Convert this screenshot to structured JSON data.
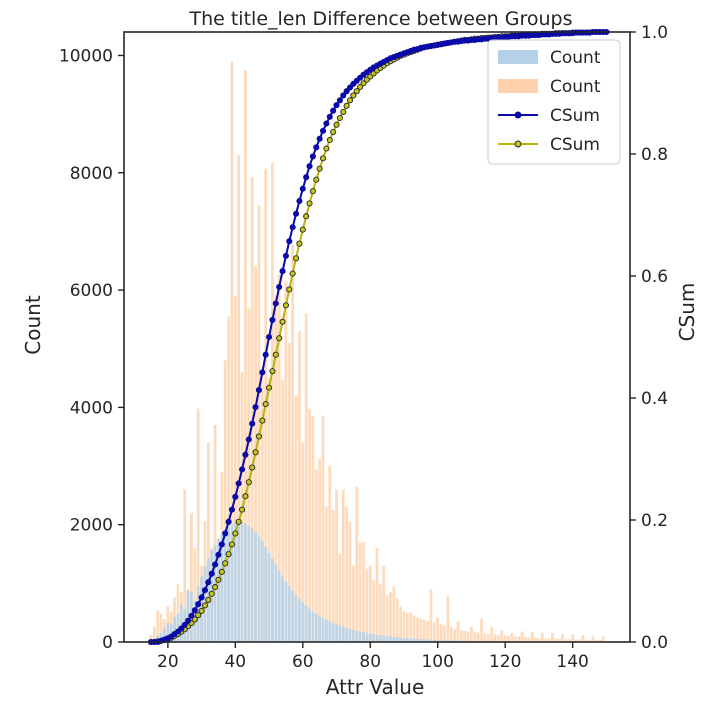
{
  "chart_data": {
    "type": "bar",
    "title": "The title_len Difference between Groups",
    "xlabel": "Attr Value",
    "ylabel": "Count",
    "y2label": "CSum",
    "xlim": [
      7,
      157
    ],
    "ylim": [
      0,
      10400
    ],
    "y2lim": [
      0,
      1.0
    ],
    "xticks": [
      20,
      40,
      60,
      80,
      100,
      120,
      140
    ],
    "yticks": [
      0,
      2000,
      4000,
      6000,
      8000,
      10000
    ],
    "y2ticks": [
      0.0,
      0.2,
      0.4,
      0.6,
      0.8,
      1.0
    ],
    "y2tick_labels": [
      "0.0",
      "0.2",
      "0.4",
      "0.6",
      "0.8",
      "1.0"
    ],
    "grid": false,
    "legend_position": "top-right",
    "legend": [
      {
        "label": "Count",
        "kind": "patch",
        "color": "#b7d1e8"
      },
      {
        "label": "Count",
        "kind": "patch",
        "color": "#ffd2ad"
      },
      {
        "label": "CSum",
        "kind": "line",
        "color": "#0a0aa8",
        "marker_fill": "#0a0aa8"
      },
      {
        "label": "CSum",
        "kind": "line",
        "color": "#b5b50c",
        "marker_fill": "#c5c51a"
      }
    ],
    "colors": {
      "series1_bar": "#b7d1e8",
      "series2_bar": "#ffd2ad",
      "series1_line": "#0a0aa8",
      "series2_line": "#b5b50c",
      "series2_marker_fill": "#c5c51a"
    },
    "x_start": 15,
    "x_step": 1,
    "series": [
      {
        "name": "Count",
        "values": [
          20,
          60,
          110,
          160,
          230,
          330,
          300,
          420,
          480,
          650,
          560,
          870,
          860,
          700,
          950,
          1120,
          1300,
          1420,
          1570,
          1650,
          1760,
          1830,
          1920,
          1960,
          2000,
          2050,
          2080,
          2050,
          2020,
          1980,
          1940,
          1880,
          1800,
          1720,
          1620,
          1520,
          1420,
          1320,
          1210,
          1120,
          1030,
          950,
          870,
          800,
          740,
          680,
          620,
          570,
          520,
          480,
          440,
          410,
          380,
          350,
          320,
          300,
          280,
          260,
          240,
          225,
          210,
          195,
          180,
          168,
          156,
          145,
          135,
          126,
          117,
          109,
          101,
          94,
          88,
          82,
          76,
          71,
          66,
          61,
          57,
          53,
          49,
          46,
          43,
          40,
          37,
          34,
          32,
          30,
          28,
          26,
          24,
          22,
          21,
          20,
          19,
          18,
          17,
          16,
          15,
          14,
          13,
          12,
          11,
          10,
          10,
          9,
          9,
          8,
          8,
          7,
          7,
          6,
          6,
          6,
          5,
          5,
          5,
          4,
          4,
          4,
          3,
          3,
          3,
          3,
          2,
          2,
          2,
          2,
          2,
          2,
          2,
          1,
          1,
          1,
          1,
          1
        ]
      },
      {
        "name": "Count",
        "values": [
          120,
          260,
          540,
          480,
          390,
          620,
          520,
          760,
          980,
          850,
          2600,
          900,
          2200,
          1600,
          3980,
          1300,
          2060,
          3400,
          1600,
          3700,
          1500,
          2900,
          4800,
          5550,
          9900,
          5900,
          8300,
          4600,
          9750,
          5700,
          7930,
          6400,
          7450,
          4600,
          8070,
          4500,
          8170,
          5900,
          6270,
          4460,
          6150,
          5100,
          6780,
          4200,
          5300,
          3400,
          5600,
          3970,
          3850,
          2950,
          3120,
          3850,
          2300,
          3000,
          2250,
          2600,
          1500,
          2600,
          2300,
          2050,
          1300,
          2650,
          1700,
          1700,
          1250,
          1300,
          1050,
          1600,
          980,
          1300,
          800,
          850,
          950,
          740,
          600,
          520,
          500,
          500,
          450,
          420,
          400,
          380,
          360,
          900,
          330,
          420,
          300,
          280,
          780,
          260,
          220,
          360,
          200,
          190,
          180,
          260,
          170,
          160,
          400,
          150,
          140,
          250,
          130,
          120,
          200,
          110,
          100,
          150,
          95,
          90,
          180,
          85,
          80,
          170,
          75,
          70,
          160,
          65,
          60,
          150,
          55,
          52,
          140,
          50,
          48,
          130,
          45,
          43,
          120,
          40,
          38,
          110,
          35,
          33,
          100
        ]
      }
    ],
    "cumsum_series": [
      {
        "name": "CSum",
        "x": [
          15,
          16,
          17,
          18,
          19,
          20,
          21,
          22,
          23,
          24,
          25,
          26,
          27,
          28,
          29,
          30,
          31,
          32,
          33,
          34,
          35,
          36,
          37,
          38,
          39,
          40,
          41,
          42,
          43,
          44,
          45,
          46,
          47,
          48,
          49,
          50,
          51,
          52,
          53,
          54,
          55,
          56,
          57,
          58,
          59,
          60,
          61,
          62,
          63,
          64,
          65,
          66,
          67,
          68,
          69,
          70,
          71,
          72,
          73,
          74,
          75,
          76,
          77,
          78,
          79,
          80,
          81,
          82,
          83,
          84,
          85,
          86,
          87,
          88,
          89,
          90,
          91,
          92,
          93,
          94,
          95,
          96,
          97,
          98,
          99,
          100,
          101,
          102,
          103,
          104,
          105,
          106,
          107,
          108,
          109,
          110,
          111,
          112,
          113,
          114,
          115,
          116,
          117,
          118,
          119,
          120,
          121,
          122,
          123,
          124,
          125,
          126,
          127,
          128,
          129,
          130,
          131,
          132,
          133,
          134,
          135,
          136,
          137,
          138,
          139,
          140,
          141,
          142,
          143,
          144,
          145,
          146,
          147,
          148,
          149,
          150
        ],
        "values": [
          0.0,
          0.0,
          0.0,
          0.002,
          0.004,
          0.006,
          0.009,
          0.013,
          0.017,
          0.022,
          0.028,
          0.035,
          0.043,
          0.052,
          0.062,
          0.073,
          0.085,
          0.098,
          0.112,
          0.127,
          0.143,
          0.16,
          0.178,
          0.197,
          0.217,
          0.238,
          0.26,
          0.283,
          0.307,
          0.332,
          0.358,
          0.385,
          0.413,
          0.442,
          0.471,
          0.5,
          0.528,
          0.555,
          0.582,
          0.608,
          0.633,
          0.657,
          0.68,
          0.702,
          0.723,
          0.743,
          0.762,
          0.78,
          0.796,
          0.811,
          0.825,
          0.838,
          0.85,
          0.861,
          0.871,
          0.88,
          0.888,
          0.896,
          0.903,
          0.909,
          0.915,
          0.92,
          0.925,
          0.93,
          0.934,
          0.938,
          0.942,
          0.945,
          0.948,
          0.951,
          0.954,
          0.957,
          0.959,
          0.961,
          0.963,
          0.965,
          0.967,
          0.969,
          0.971,
          0.972,
          0.974,
          0.975,
          0.976,
          0.977,
          0.978,
          0.979,
          0.98,
          0.981,
          0.982,
          0.983,
          0.984,
          0.984,
          0.985,
          0.986,
          0.986,
          0.987,
          0.987,
          0.988,
          0.988,
          0.989,
          0.989,
          0.99,
          0.99,
          0.991,
          0.991,
          0.992,
          0.992,
          0.993,
          0.993,
          0.993,
          0.994,
          0.994,
          0.994,
          0.995,
          0.995,
          0.995,
          0.996,
          0.996,
          0.996,
          0.997,
          0.997,
          0.997,
          0.998,
          0.998,
          0.998,
          0.998,
          0.999,
          0.999,
          0.999,
          0.999,
          0.999,
          1.0,
          1.0,
          1.0,
          1.0,
          1.0
        ]
      },
      {
        "name": "CSum",
        "x": [
          15,
          16,
          17,
          18,
          19,
          20,
          21,
          22,
          23,
          24,
          25,
          26,
          27,
          28,
          29,
          30,
          31,
          32,
          33,
          34,
          35,
          36,
          37,
          38,
          39,
          40,
          41,
          42,
          43,
          44,
          45,
          46,
          47,
          48,
          49,
          50,
          51,
          52,
          53,
          54,
          55,
          56,
          57,
          58,
          59,
          60,
          61,
          62,
          63,
          64,
          65,
          66,
          67,
          68,
          69,
          70,
          71,
          72,
          73,
          74,
          75,
          76,
          77,
          78,
          79,
          80,
          81,
          82,
          83,
          84,
          85,
          86,
          87,
          88,
          89,
          90,
          91,
          92,
          93,
          94,
          95,
          96,
          97,
          98,
          99,
          100,
          101,
          102,
          103,
          104,
          105,
          106,
          107,
          108,
          109,
          110,
          111,
          112,
          113,
          114,
          115,
          116,
          117,
          118,
          119,
          120,
          121,
          122,
          123,
          124,
          125,
          126,
          127,
          128,
          129,
          130,
          131,
          132,
          133,
          134,
          135,
          136,
          137,
          138,
          139,
          140,
          141,
          142,
          143,
          144,
          145,
          146,
          147,
          148,
          149,
          150
        ],
        "values": [
          0.0,
          0.0,
          0.001,
          0.002,
          0.003,
          0.005,
          0.007,
          0.01,
          0.013,
          0.017,
          0.021,
          0.026,
          0.031,
          0.037,
          0.044,
          0.051,
          0.06,
          0.069,
          0.079,
          0.09,
          0.102,
          0.115,
          0.129,
          0.144,
          0.16,
          0.178,
          0.197,
          0.217,
          0.239,
          0.262,
          0.286,
          0.311,
          0.337,
          0.363,
          0.39,
          0.417,
          0.444,
          0.471,
          0.498,
          0.525,
          0.552,
          0.578,
          0.604,
          0.629,
          0.653,
          0.676,
          0.698,
          0.719,
          0.739,
          0.758,
          0.776,
          0.793,
          0.809,
          0.823,
          0.836,
          0.848,
          0.859,
          0.869,
          0.879,
          0.888,
          0.896,
          0.903,
          0.91,
          0.916,
          0.922,
          0.927,
          0.932,
          0.937,
          0.941,
          0.945,
          0.949,
          0.952,
          0.955,
          0.958,
          0.961,
          0.963,
          0.965,
          0.967,
          0.969,
          0.971,
          0.973,
          0.975,
          0.976,
          0.977,
          0.978,
          0.979,
          0.98,
          0.981,
          0.982,
          0.983,
          0.984,
          0.985,
          0.986,
          0.987,
          0.987,
          0.988,
          0.989,
          0.989,
          0.99,
          0.99,
          0.991,
          0.991,
          0.992,
          0.992,
          0.993,
          0.993,
          0.993,
          0.994,
          0.994,
          0.994,
          0.995,
          0.995,
          0.995,
          0.996,
          0.996,
          0.996,
          0.997,
          0.997,
          0.997,
          0.997,
          0.998,
          0.998,
          0.998,
          0.998,
          0.998,
          0.999,
          0.999,
          0.999,
          0.999,
          0.999,
          0.999,
          1.0,
          1.0,
          1.0,
          1.0,
          1.0
        ]
      }
    ]
  }
}
